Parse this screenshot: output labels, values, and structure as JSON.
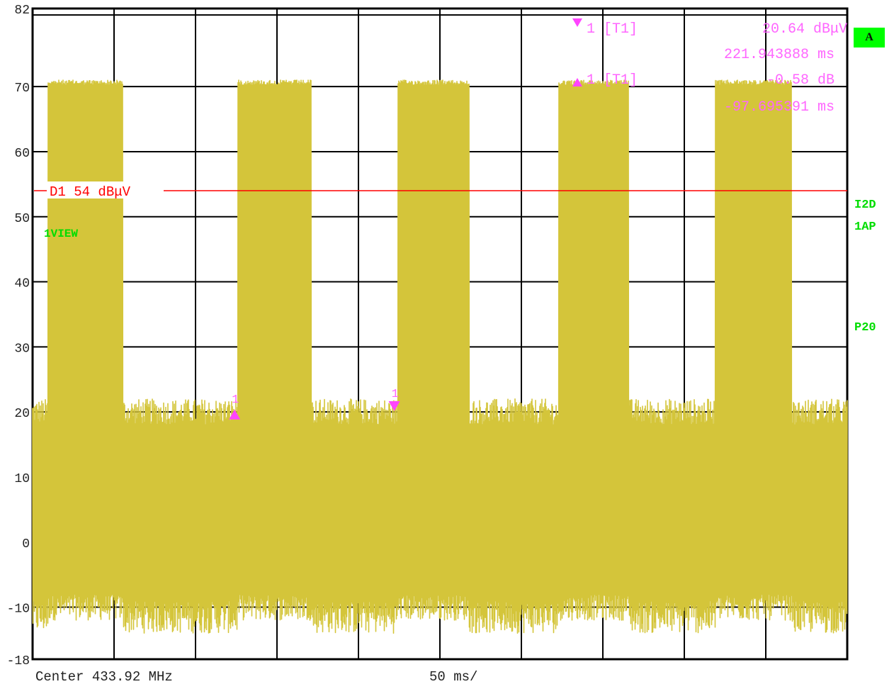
{
  "chart_data": {
    "type": "line",
    "title": "",
    "xlabel": "",
    "ylabel": "",
    "x_unit": "ms",
    "xlim": [
      0,
      500
    ],
    "ylim": [
      -18,
      82
    ],
    "y_ticks": [
      "82",
      "70",
      "60",
      "50",
      "40",
      "30",
      "20",
      "10",
      "0",
      "-10",
      "-18"
    ],
    "y_tick_values": [
      82,
      70,
      60,
      50,
      40,
      30,
      20,
      10,
      0,
      -10,
      -18
    ],
    "grid": true,
    "trace_color": "#d4c53a",
    "noise_floor": {
      "low": -12,
      "high": 21
    },
    "bursts": [
      {
        "start_ms": 9.5,
        "end_ms": 55.5,
        "peak": 71
      },
      {
        "start_ms": 126,
        "end_ms": 171,
        "peak": 71
      },
      {
        "start_ms": 224,
        "end_ms": 268,
        "peak": 71
      },
      {
        "start_ms": 323,
        "end_ms": 366,
        "peak": 71
      },
      {
        "start_ms": 419,
        "end_ms": 466,
        "peak": 71
      }
    ],
    "display_line": {
      "label": "D1  54  dBμV",
      "value": 54,
      "color": "#ff0000"
    },
    "markers": [
      {
        "label": "1",
        "x_ms": 124,
        "y": 19.5,
        "shape": "up"
      },
      {
        "label": "1",
        "x_ms": 222,
        "y": 21,
        "shape": "down"
      }
    ],
    "readout": {
      "line1_label": "1  [T1]",
      "line1_value": "20.64  dBμV",
      "line2_value": "221.943888  ms",
      "line3_label": "1  [T1]",
      "line3_value": "-0.58  dB",
      "line4_value": "-97.695391  ms",
      "color": "#ff66ff"
    },
    "trace_tag": "1VIEW"
  },
  "side": {
    "badge": "A",
    "label_i2d": "I2D",
    "label_1ap": "1AP",
    "label_p20": "P20"
  },
  "footer": {
    "center": "Center 433.92 MHz",
    "span": "50 ms/"
  }
}
